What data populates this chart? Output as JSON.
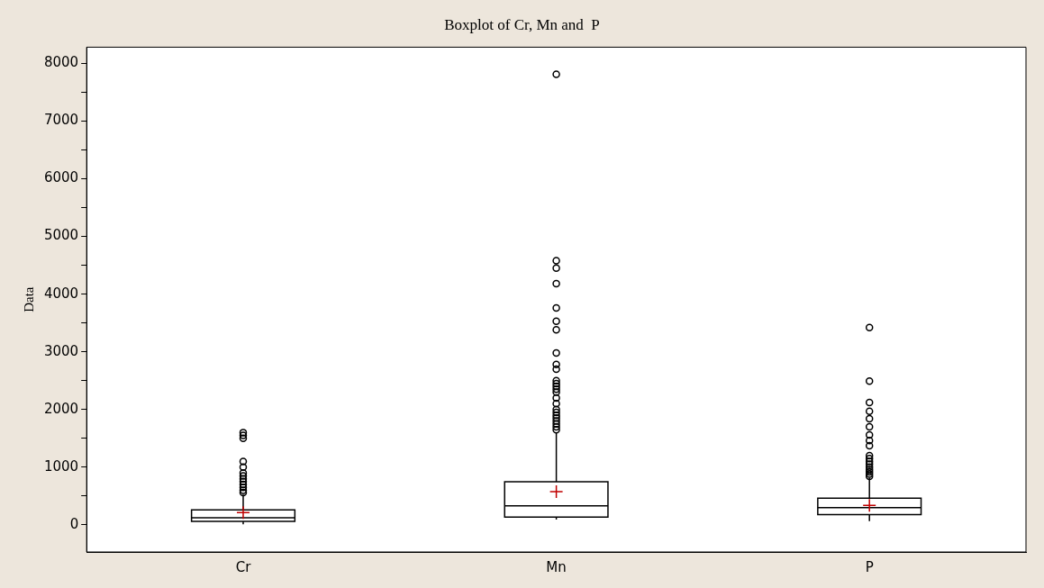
{
  "chart_data": {
    "type": "box",
    "title": "Boxplot of Cr, Mn and  P",
    "ylabel": "Data",
    "categories": [
      "Cr",
      "Mn",
      "P"
    ],
    "color": "#000000",
    "boxes": [
      {
        "low": 10,
        "q1": 60,
        "median": 125,
        "q3": 260,
        "high": 525,
        "mean": 213,
        "outliers": [
          560,
          600,
          650,
          700,
          750,
          800,
          850,
          900,
          1000,
          1100,
          1500,
          1550,
          1600
        ]
      },
      {
        "low": 90,
        "q1": 136,
        "median": 328,
        "q3": 748,
        "high": 1600,
        "mean": 575,
        "outliers": [
          1650,
          1700,
          1750,
          1800,
          1850,
          1900,
          1950,
          2000,
          2100,
          2200,
          2300,
          2350,
          2400,
          2450,
          2500,
          2700,
          2780,
          2980,
          3380,
          3530,
          3760,
          4180,
          4450,
          4580,
          7810
        ]
      },
      {
        "low": 65,
        "q1": 176,
        "median": 300,
        "q3": 462,
        "high": 813,
        "mean": 338,
        "outliers": [
          840,
          880,
          920,
          960,
          1000,
          1050,
          1100,
          1150,
          1200,
          1370,
          1460,
          1560,
          1700,
          1840,
          1970,
          2120,
          2490,
          3420
        ]
      }
    ],
    "ylim": [
      -470,
      8280
    ],
    "yticks": [
      0,
      {
        "value": 500,
        "label": null
      },
      1000,
      {
        "value": 1500,
        "label": null
      },
      2000,
      {
        "value": 2500,
        "label": null
      },
      3000,
      {
        "value": 3500,
        "label": null
      },
      4000,
      {
        "value": 4500,
        "label": null
      },
      5000,
      {
        "value": 5500,
        "label": null
      },
      6000,
      {
        "value": 6500,
        "label": null
      },
      7000,
      {
        "value": 7500,
        "label": null
      },
      8000
    ],
    "grid": false,
    "legend": false,
    "marker": "circle"
  }
}
